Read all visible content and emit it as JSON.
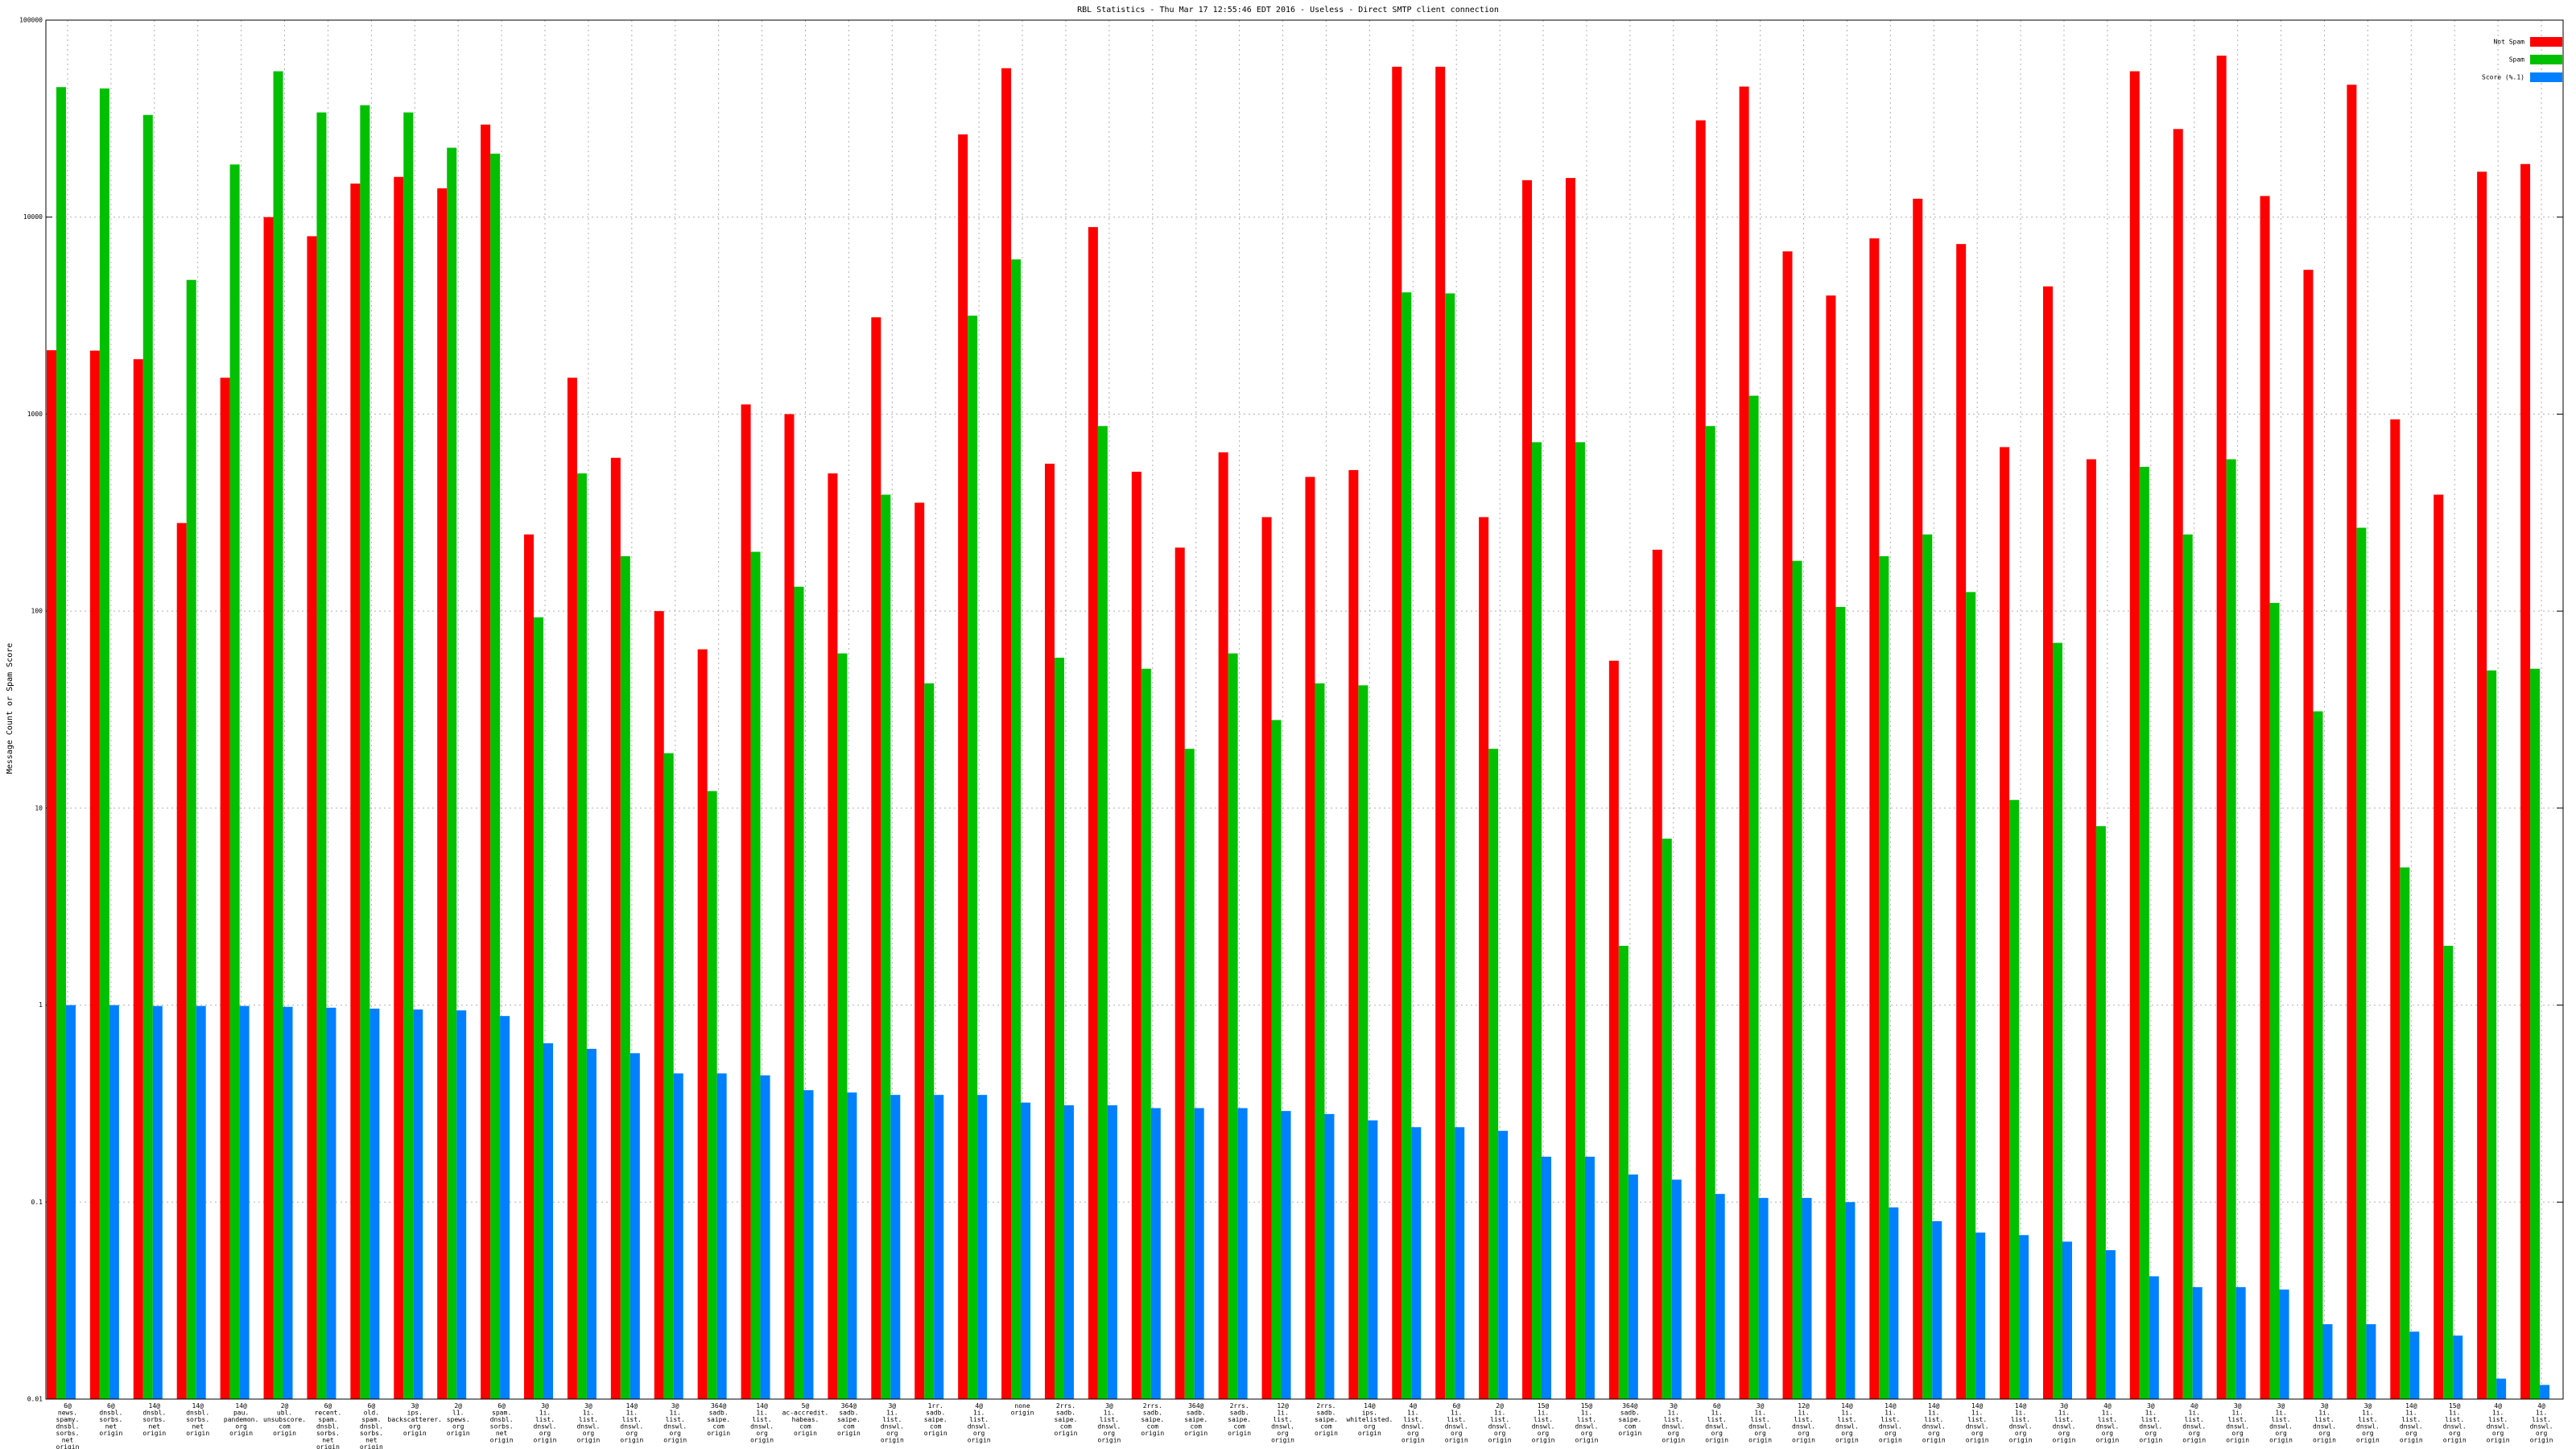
{
  "chart_data": {
    "type": "bar",
    "title": "RBL Statistics - Thu Mar 17 12:55:46 EDT 2016 - Useless - Direct SMTP client connection",
    "y_label": "Message Count or Spam Score",
    "log_scale": true,
    "grid": true,
    "legend_position": "top-right",
    "ylim": [
      0.01,
      100000
    ],
    "yticks": [
      0.01,
      0.1,
      1,
      10,
      100,
      1000,
      10000,
      100000
    ],
    "categories": [
      "6@\nnews.\nspamy.\ndnsbl.\nsorbs.\nnet\norigin",
      "6@\ndnsbl.\nsorbs.\nnet\norigin",
      "14@\ndnsbl.\nsorbs.\nnet\norigin",
      "14@\ndnsbl.\nsorbs.\nnet\norigin",
      "14@\npau.\npandemon.\norg\norigin",
      "2@\nubl.\nunsubscore.\ncom\norigin",
      "6@\nrecent.\nspam.\ndnsbl.\nsorbs.\nnet\norigin",
      "6@\nold.\nspam.\ndnsbl.\nsorbs.\nnet\norigin",
      "3@\nips.\nbackscatterer.\norg\norigin",
      "2@\nl1.\nspews.\norg\norigin",
      "6@\nspam.\ndnsbl.\nsorbs.\nnet\norigin",
      "3@\n1i.\nlist.\ndnswl.\norg\norigin",
      "3@\n1i.\nlist.\ndnswl.\norg\norigin",
      "14@\n1i.\nlist.\ndnswl.\norg\norigin",
      "3@\n1i.\nlist.\ndnswl.\norg\norigin",
      "364@\nsadb.\nsaipe.\ncom\norigin",
      "14@\n1i.\nlist.\ndnswl.\norg\norigin",
      "5@\nac-accredit.\nhabeas.\ncom\norigin",
      "364@\nsadb.\nsaipe.\ncom\norigin",
      "3@\n1i.\nlist.\ndnswl.\norg\norigin",
      "1rr.\nsadb.\nsaipe.\ncom\norigin",
      "4@\n1i.\nlist.\ndnswl.\norg\norigin",
      "none\norigin",
      "2rrs.\nsadb.\nsaipe.\ncom\norigin",
      "3@\n1i.\nlist.\ndnswl.\norg\norigin",
      "2rrs.\nsadb.\nsaipe.\ncom\norigin",
      "364@\nsadb.\nsaipe.\ncom\norigin",
      "2rrs.\nsadb.\nsaipe.\ncom\norigin",
      "12@\n1i.\nlist.\ndnswl.\norg\norigin",
      "2rrs.\nsadb.\nsaipe.\ncom\norigin",
      "14@\nips.\nwhitelisted.\norg\norigin",
      "4@\n1i.\nlist.\ndnswl.\norg\norigin",
      "6@\n1i.\nlist.\ndnswl.\norg\norigin",
      "2@\n1i.\nlist.\ndnswl.\norg\norigin",
      "15@\n1i.\nlist.\ndnswl.\norg\norigin",
      "15@\n1i.\nlist.\ndnswl.\norg\norigin",
      "364@\nsadb.\nsaipe.\ncom\norigin",
      "3@\n1i.\nlist.\ndnswl.\norg\norigin",
      "6@\n1i.\nlist.\ndnswl.\norg\norigin",
      "3@\n1i.\nlist.\ndnswl.\norg\norigin",
      "12@\n1i.\nlist.\ndnswl.\norg\norigin",
      "14@\n1i.\nlist.\ndnswl.\norg\norigin",
      "14@\n1i.\nlist.\ndnswl.\norg\norigin",
      "14@\n1i.\nlist.\ndnswl.\norg\norigin",
      "14@\n1i.\nlist.\ndnswl.\norg\norigin",
      "14@\n1i.\nlist.\ndnswl.\norg\norigin",
      "3@\n1i.\nlist.\ndnswl.\norg\norigin",
      "4@\n1i.\nlist.\ndnswl.\norg\norigin",
      "3@\n1i.\nlist.\ndnswl.\norg\norigin",
      "4@\n1i.\nlist.\ndnswl.\norg\norigin",
      "3@\n1i.\nlist.\ndnswl.\norg\norigin",
      "3@\n1i.\nlist.\ndnswl.\norg\norigin",
      "3@\n1i.\nlist.\ndnswl.\norg\norigin",
      "3@\n1i.\nlist.\ndnswl.\norg\norigin",
      "14@\n1i.\nlist.\ndnswl.\norg\norigin",
      "15@\n1i.\nlist.\ndnswl.\norg\norigin",
      "4@\n1i.\nlist.\ndnswl.\norg\norigin",
      "4@\n1i.\nlist.\ndnswl.\norg\norigin"
    ],
    "series": [
      {
        "name": "Not Spam",
        "color": "#ff0000",
        "values": [
          2110,
          2100,
          1900,
          280,
          1530,
          10000,
          8000,
          14800,
          16000,
          14000,
          29500,
          245,
          1530,
          600,
          100,
          64,
          1120,
          1000,
          500,
          3100,
          355,
          26300,
          57000,
          560,
          8900,
          510,
          210,
          640,
          300,
          480,
          520,
          58000,
          58000,
          300,
          15400,
          15800,
          56,
          205,
          31000,
          46000,
          6700,
          4000,
          7800,
          12400,
          7300,
          680,
          4450,
          590,
          55000,
          28000,
          66000,
          12800,
          5400,
          47000,
          940,
          390,
          17000,
          18600
        ]
      },
      {
        "name": "Spam",
        "color": "#00c000",
        "values": [
          45700,
          45000,
          33000,
          4800,
          18500,
          55000,
          34000,
          37000,
          34000,
          22500,
          21000,
          93,
          500,
          190,
          19,
          12.2,
          200,
          133,
          61,
          390,
          43,
          3160,
          6100,
          58,
          870,
          51,
          20,
          61,
          28,
          43,
          42,
          4150,
          4100,
          20,
          720,
          720,
          2.0,
          7.0,
          870,
          1240,
          180,
          105,
          190,
          245,
          125,
          11,
          69,
          8.1,
          540,
          245,
          590,
          110,
          31,
          265,
          5.0,
          2.0,
          50,
          51
        ]
      },
      {
        "name": "Score (%.1)",
        "color": "#0080ff",
        "values": [
          1.0,
          1.0,
          0.99,
          0.99,
          0.99,
          0.98,
          0.97,
          0.96,
          0.95,
          0.94,
          0.88,
          0.64,
          0.6,
          0.57,
          0.45,
          0.45,
          0.44,
          0.37,
          0.36,
          0.35,
          0.35,
          0.35,
          0.32,
          0.31,
          0.31,
          0.3,
          0.3,
          0.3,
          0.29,
          0.28,
          0.26,
          0.24,
          0.24,
          0.23,
          0.17,
          0.17,
          0.138,
          0.13,
          0.11,
          0.105,
          0.105,
          0.1,
          0.094,
          0.08,
          0.07,
          0.068,
          0.063,
          0.057,
          0.042,
          0.037,
          0.037,
          0.036,
          0.024,
          0.024,
          0.022,
          0.021,
          0.0127,
          0.0118
        ]
      }
    ]
  }
}
